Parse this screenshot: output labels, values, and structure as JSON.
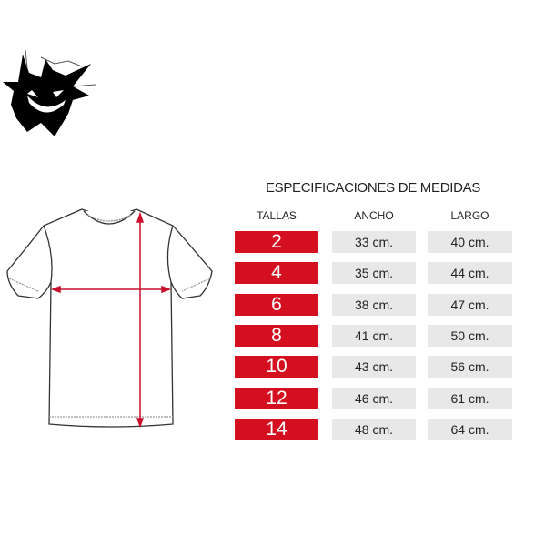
{
  "title": "ESPECIFICACIONES DE MEDIDAS",
  "headers": {
    "tallas": "TALLAS",
    "ancho": "ANCHO",
    "largo": "LARGO"
  },
  "rows": [
    {
      "talla": "2",
      "ancho": "33 cm.",
      "largo": "40 cm."
    },
    {
      "talla": "4",
      "ancho": "35 cm.",
      "largo": "44 cm."
    },
    {
      "talla": "6",
      "ancho": "38 cm.",
      "largo": "47 cm."
    },
    {
      "talla": "8",
      "ancho": "41 cm.",
      "largo": "50 cm."
    },
    {
      "talla": "10",
      "ancho": "43 cm.",
      "largo": "56 cm."
    },
    {
      "talla": "12",
      "ancho": "46 cm.",
      "largo": "61 cm."
    },
    {
      "talla": "14",
      "ancho": "48 cm.",
      "largo": "64 cm."
    }
  ],
  "colors": {
    "accent": "#d40f1f",
    "cell": "#e8e8e8",
    "arrow": "#c8102e"
  },
  "icons": {
    "logo": "ghost-grin-logo",
    "diagram": "tshirt-measurement-diagram"
  }
}
